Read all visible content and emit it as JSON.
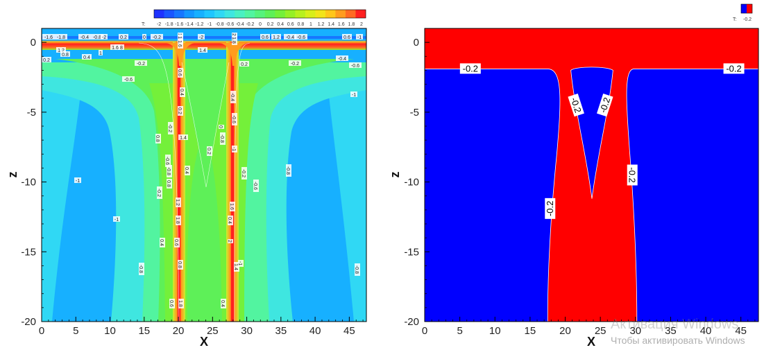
{
  "chart_data": [
    {
      "type": "heatmap",
      "subtype": "filled-contour",
      "variable_label": "T:",
      "xlabel": "X",
      "ylabel": "z",
      "xlim": [
        0,
        47.5
      ],
      "ylim": [
        -20,
        1
      ],
      "x_ticks": [
        0,
        5,
        10,
        15,
        20,
        25,
        30,
        35,
        40,
        45
      ],
      "y_ticks": [
        0,
        -5,
        -10,
        -15,
        -20
      ],
      "colorbar_levels": [
        -2,
        -1.8,
        -1.6,
        -1.4,
        -1.2,
        -1,
        -0.8,
        -0.6,
        -0.4,
        -0.2,
        0,
        0.2,
        0.4,
        0.6,
        0.8,
        1,
        1.2,
        1.4,
        1.6,
        1.8,
        2
      ],
      "colorbar_colors": [
        "#1e32ff",
        "#1a56ff",
        "#1776ff",
        "#1497ff",
        "#17b0ff",
        "#1fc6ff",
        "#30d8f4",
        "#3fe6e0",
        "#4af0c2",
        "#52f4a0",
        "#56f27c",
        "#5ef058",
        "#74f03a",
        "#96f026",
        "#b8f01e",
        "#d8ee1a",
        "#f2e41a",
        "#ffc61a",
        "#ff9c1e",
        "#ff6a22",
        "#ff2020"
      ],
      "colorbar_position": "top-right",
      "warm_columns_x": [
        20,
        27.6
      ],
      "top_warm_layer_z": [
        0,
        -1
      ],
      "contour_labels": [
        "-1.6",
        "-1.8",
        "-0.4",
        "-0.8",
        "-2",
        "0.2",
        "0",
        "-0.2",
        "-2",
        "0.6",
        "1.2",
        "-0.4",
        "-0.6",
        "0.6",
        "-1",
        "1.8",
        "1.6",
        "1.4",
        "1.2",
        "0.8",
        "1",
        "0.2",
        "0.4",
        "-0.2",
        "-0.2",
        "-0.4",
        "-0.6",
        "0.2",
        "-0.6",
        "-1",
        "1",
        "1.2",
        "1.6",
        "1.8",
        "2",
        "0.6",
        "0.4",
        "0.2",
        "-0.2",
        "-0.4",
        "-0.6",
        "-0.8",
        "-1",
        "0.8",
        "1.4",
        "0.2",
        "-0.6",
        "-0.8",
        "0.4",
        "-0.2",
        "0",
        "-0.8",
        "-0.6",
        "-0.2",
        "0.8",
        "1.2",
        "1.8",
        "0.4",
        "0.6",
        "0.8",
        "-1",
        "-1",
        "-0.8",
        "0.4",
        "1.6",
        "2",
        "1.4",
        "1.8",
        "0.6",
        "0.4",
        "-1",
        "-0.8"
      ]
    },
    {
      "type": "heatmap",
      "subtype": "filled-contour",
      "variable_label": "T:",
      "level": -0.2,
      "xlabel": "X",
      "ylabel": "z",
      "xlim": [
        0,
        47.5
      ],
      "ylim": [
        -20,
        1
      ],
      "x_ticks": [
        0,
        5,
        10,
        15,
        20,
        25,
        30,
        35,
        40,
        45
      ],
      "y_ticks": [
        0,
        -5,
        -10,
        -15,
        -20
      ],
      "colors": {
        "above": "#ff0000",
        "below": "#0000ff"
      },
      "regions": {
        "top_layer_z": [
          0,
          -1.9
        ],
        "warm_column_x_at_bottom": [
          17.5,
          30.2
        ],
        "cold_wedge_tip": {
          "x": 23.8,
          "z": -11.2
        }
      },
      "contour_labels": [
        "-0.2",
        "-0.2",
        "-0.2",
        "-0.2",
        "-0.2",
        "-0.2"
      ]
    }
  ],
  "watermark": {
    "line1": "Активация Windows",
    "line2": "Чтобы активировать Windows"
  }
}
